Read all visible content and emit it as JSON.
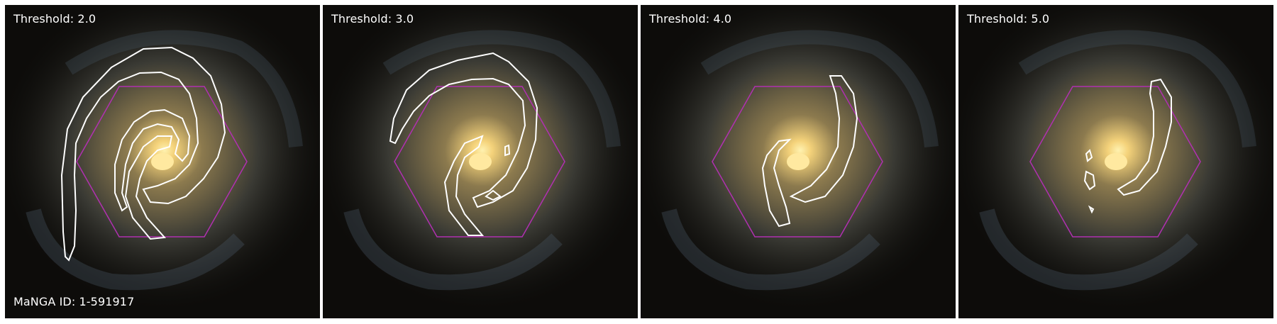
{
  "panels": [
    {
      "label": "Threshold: 2.0"
    },
    {
      "label": "Threshold: 3.0"
    },
    {
      "label": "Threshold: 4.0"
    },
    {
      "label": "Threshold: 5.0"
    }
  ],
  "manga_id": "MaNGA ID: 1-591917",
  "colors": {
    "contour": "#ffffff",
    "hexagon": "#b030b0",
    "galaxy_core": "#ffe9a0",
    "background": "#0d0c0a"
  }
}
